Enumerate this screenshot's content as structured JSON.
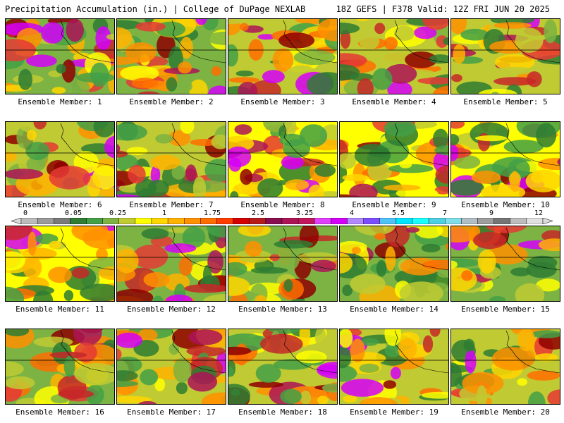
{
  "header": {
    "title_left": "Precipitation Accumulation (in.) | College of DuPage NEXLAB",
    "title_right": "18Z GEFS | F378 Valid: 12Z FRI JUN 20 2025"
  },
  "colorbar": {
    "tick_labels": [
      "0",
      "0.05",
      "0.25",
      "1",
      "1.75",
      "2.5",
      "3.25",
      "4",
      "5.5",
      "7",
      "9",
      "12"
    ],
    "colors": [
      "#bcbcbc",
      "#9a9a9a",
      "#7a7a7a",
      "#2e7d32",
      "#43a047",
      "#7cb342",
      "#c0ca33",
      "#ffff00",
      "#ffd600",
      "#ffb300",
      "#ff9100",
      "#ff6d00",
      "#ff3d00",
      "#d50000",
      "#b71c1c",
      "#880e4f",
      "#ad1457",
      "#c2185b",
      "#e040fb",
      "#d500f9",
      "#b388ff",
      "#7c4dff",
      "#4fc3f7",
      "#00e5ff",
      "#18ffff",
      "#4dd0e1",
      "#80deea",
      "#b0bec5",
      "#9e9e9e",
      "#757575",
      "#bdbdbd",
      "#e0e0e0"
    ]
  },
  "members": [
    {
      "label": "Ensemble Member: 1"
    },
    {
      "label": "Ensemble Member: 2"
    },
    {
      "label": "Ensemble Member: 3"
    },
    {
      "label": "Ensemble Member: 4"
    },
    {
      "label": "Ensemble Member: 5"
    },
    {
      "label": "Ensemble Member: 6"
    },
    {
      "label": "Ensemble Member: 7"
    },
    {
      "label": "Ensemble Member: 8"
    },
    {
      "label": "Ensemble Member: 9"
    },
    {
      "label": "Ensemble Member: 10"
    },
    {
      "label": "Ensemble Member: 11"
    },
    {
      "label": "Ensemble Member: 12"
    },
    {
      "label": "Ensemble Member: 13"
    },
    {
      "label": "Ensemble Member: 14"
    },
    {
      "label": "Ensemble Member: 15"
    },
    {
      "label": "Ensemble Member: 16"
    },
    {
      "label": "Ensemble Member: 17"
    },
    {
      "label": "Ensemble Member: 18"
    },
    {
      "label": "Ensemble Member: 19"
    },
    {
      "label": "Ensemble Member: 20"
    }
  ]
}
